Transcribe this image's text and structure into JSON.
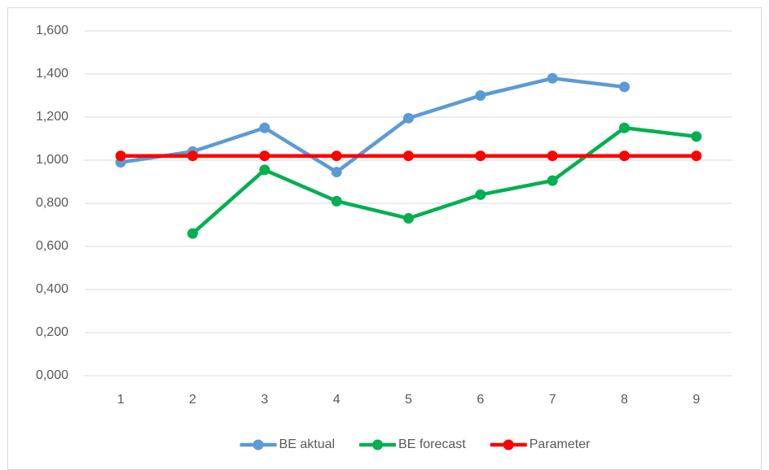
{
  "chart_data": {
    "type": "line",
    "categories": [
      "1",
      "2",
      "3",
      "4",
      "5",
      "6",
      "7",
      "8",
      "9"
    ],
    "series": [
      {
        "name": "BE aktual",
        "color": "#5b9bd5",
        "values": [
          0.99,
          1.04,
          1.15,
          0.945,
          1.195,
          1.3,
          1.38,
          1.34,
          null
        ]
      },
      {
        "name": "BE forecast",
        "color": "#00b050",
        "values": [
          null,
          0.66,
          0.955,
          0.81,
          0.73,
          0.84,
          0.905,
          1.15,
          1.11
        ]
      },
      {
        "name": "Parameter",
        "color": "#ff0000",
        "values": [
          1.02,
          1.02,
          1.02,
          1.02,
          1.02,
          1.02,
          1.02,
          1.02,
          1.02
        ]
      }
    ],
    "ylim": [
      0,
      1.6
    ],
    "yticks": [
      {
        "value": 0,
        "label": "0,000"
      },
      {
        "value": 0.2,
        "label": "0,200"
      },
      {
        "value": 0.4,
        "label": "0,400"
      },
      {
        "value": 0.6,
        "label": "0,600"
      },
      {
        "value": 0.8,
        "label": "0,800"
      },
      {
        "value": 1.0,
        "label": "1,000"
      },
      {
        "value": 1.2,
        "label": "1,200"
      },
      {
        "value": 1.4,
        "label": "1,400"
      },
      {
        "value": 1.6,
        "label": "1,600"
      }
    ],
    "grid": true,
    "legend": "bottom"
  }
}
